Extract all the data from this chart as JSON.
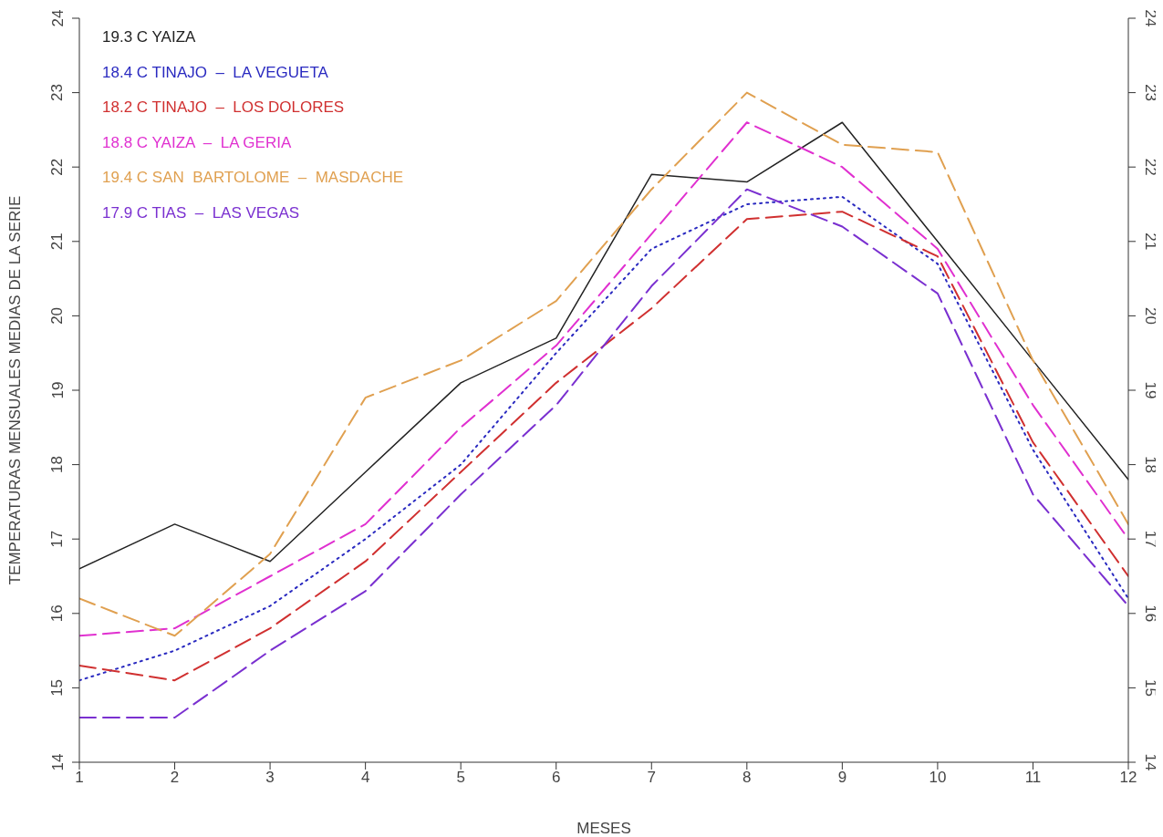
{
  "chart_data": {
    "type": "line",
    "ylabel": "TEMPERATURAS MENSUALES MEDIAS DE  LA SERIE",
    "xlabel": "MESES",
    "x": [
      1,
      2,
      3,
      4,
      5,
      6,
      7,
      8,
      9,
      10,
      11,
      12
    ],
    "xlim": [
      1,
      12
    ],
    "xticks": [
      1,
      2,
      3,
      4,
      5,
      6,
      7,
      8,
      9,
      10,
      11,
      12
    ],
    "ylim": [
      14,
      24
    ],
    "yticks": [
      14,
      15,
      16,
      17,
      18,
      19,
      20,
      21,
      22,
      23,
      24
    ],
    "y2lim": [
      14,
      24
    ],
    "y2ticks": [
      14,
      15,
      16,
      17,
      18,
      19,
      20,
      21,
      22,
      23,
      24
    ],
    "legend": "top left",
    "marker": "none",
    "series": [
      {
        "name": "19.3 C YAIZA",
        "color": "#222222",
        "line_style": "solid",
        "values": [
          16.6,
          17.2,
          16.7,
          17.9,
          19.1,
          19.7,
          21.9,
          21.8,
          22.6,
          21.0,
          19.4,
          17.8
        ]
      },
      {
        "name": "18.4 C TINAJO  –  LA VEGUETA",
        "color": "#2a2ac0",
        "line_style": "dotted",
        "values": [
          15.1,
          15.5,
          16.1,
          17.0,
          18.0,
          19.5,
          20.9,
          21.5,
          21.6,
          20.7,
          18.2,
          16.2
        ]
      },
      {
        "name": "18.2 C TINAJO  –  LOS DOLORES",
        "color": "#d03030",
        "line_style": "dashed",
        "values": [
          15.3,
          15.1,
          15.8,
          16.7,
          17.9,
          19.1,
          20.1,
          21.3,
          21.4,
          20.8,
          18.3,
          16.5
        ]
      },
      {
        "name": "18.8 C YAIZA  –  LA GERIA",
        "color": "#e030d0",
        "line_style": "dashed",
        "values": [
          15.7,
          15.8,
          16.5,
          17.2,
          18.5,
          19.6,
          21.1,
          22.6,
          22.0,
          20.9,
          18.8,
          17.0
        ]
      },
      {
        "name": "19.4 C SAN  BARTOLOME  –  MASDACHE",
        "color": "#e0a050",
        "line_style": "dashed",
        "values": [
          16.2,
          15.7,
          16.8,
          18.9,
          19.4,
          20.2,
          21.7,
          23.0,
          22.3,
          22.2,
          19.4,
          17.2
        ]
      },
      {
        "name": "17.9 C TIAS  –  LAS VEGAS",
        "color": "#7a30d0",
        "line_style": "dashed",
        "values": [
          14.6,
          14.6,
          15.5,
          16.3,
          17.6,
          18.8,
          20.4,
          21.7,
          21.2,
          20.3,
          17.6,
          16.1
        ]
      }
    ]
  }
}
